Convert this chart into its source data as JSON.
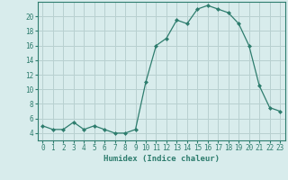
{
  "x": [
    0,
    1,
    2,
    3,
    4,
    5,
    6,
    7,
    8,
    9,
    10,
    11,
    12,
    13,
    14,
    15,
    16,
    17,
    18,
    19,
    20,
    21,
    22,
    23
  ],
  "y": [
    5,
    4.5,
    4.5,
    5.5,
    4.5,
    5,
    4.5,
    4,
    4,
    4.5,
    11,
    16,
    17,
    19.5,
    19,
    21,
    21.5,
    21,
    20.5,
    19,
    16,
    10.5,
    7.5,
    7
  ],
  "line_color": "#2e7d6e",
  "marker": "D",
  "marker_size": 2.0,
  "bg_color": "#d8ecec",
  "grid_color": "#b8d0d0",
  "xlabel": "Humidex (Indice chaleur)",
  "ylim": [
    3,
    22
  ],
  "xlim": [
    -0.5,
    23.5
  ],
  "yticks": [
    4,
    6,
    8,
    10,
    12,
    14,
    16,
    18,
    20
  ],
  "xticks": [
    0,
    1,
    2,
    3,
    4,
    5,
    6,
    7,
    8,
    9,
    10,
    11,
    12,
    13,
    14,
    15,
    16,
    17,
    18,
    19,
    20,
    21,
    22,
    23
  ],
  "tick_color": "#2e7d6e",
  "label_fontsize": 5.5,
  "axis_fontsize": 6.5
}
